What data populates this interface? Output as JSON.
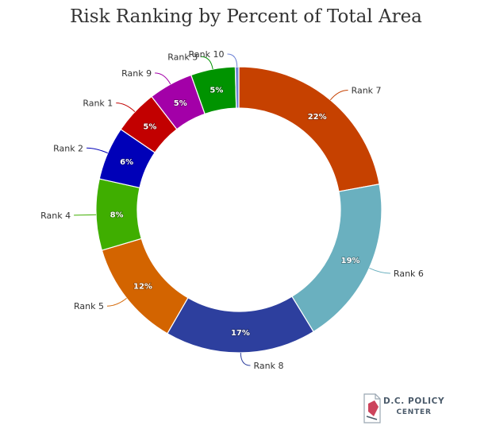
{
  "chart_data": {
    "type": "pie",
    "variant": "donut",
    "title": "Risk Ranking by Percent of Total Area",
    "legend": "none",
    "slices": [
      {
        "label": "Rank 7",
        "value": 22,
        "display": "22%",
        "color": "#c64100"
      },
      {
        "label": "Rank 6",
        "value": 19,
        "display": "19%",
        "color": "#6ab0bf"
      },
      {
        "label": "Rank 8",
        "value": 17,
        "display": "17%",
        "color": "#2d3f9e"
      },
      {
        "label": "Rank 5",
        "value": 12,
        "display": "12%",
        "color": "#d36400"
      },
      {
        "label": "Rank 4",
        "value": 8,
        "display": "8%",
        "color": "#3fae00"
      },
      {
        "label": "Rank 2",
        "value": 6,
        "display": "6%",
        "color": "#0000b8"
      },
      {
        "label": "Rank 1",
        "value": 5,
        "display": "5%",
        "color": "#c20000"
      },
      {
        "label": "Rank 9",
        "value": 5,
        "display": "5%",
        "color": "#a300a8"
      },
      {
        "label": "Rank 3",
        "value": 5,
        "display": "5%",
        "color": "#009300"
      },
      {
        "label": "Rank 10",
        "value": 0.4,
        "display": "",
        "color": "#6e83d6"
      }
    ]
  },
  "logo": {
    "line1": "D.C. POLICY",
    "line2": "CENTER",
    "icon": "dc-map-document-icon"
  }
}
